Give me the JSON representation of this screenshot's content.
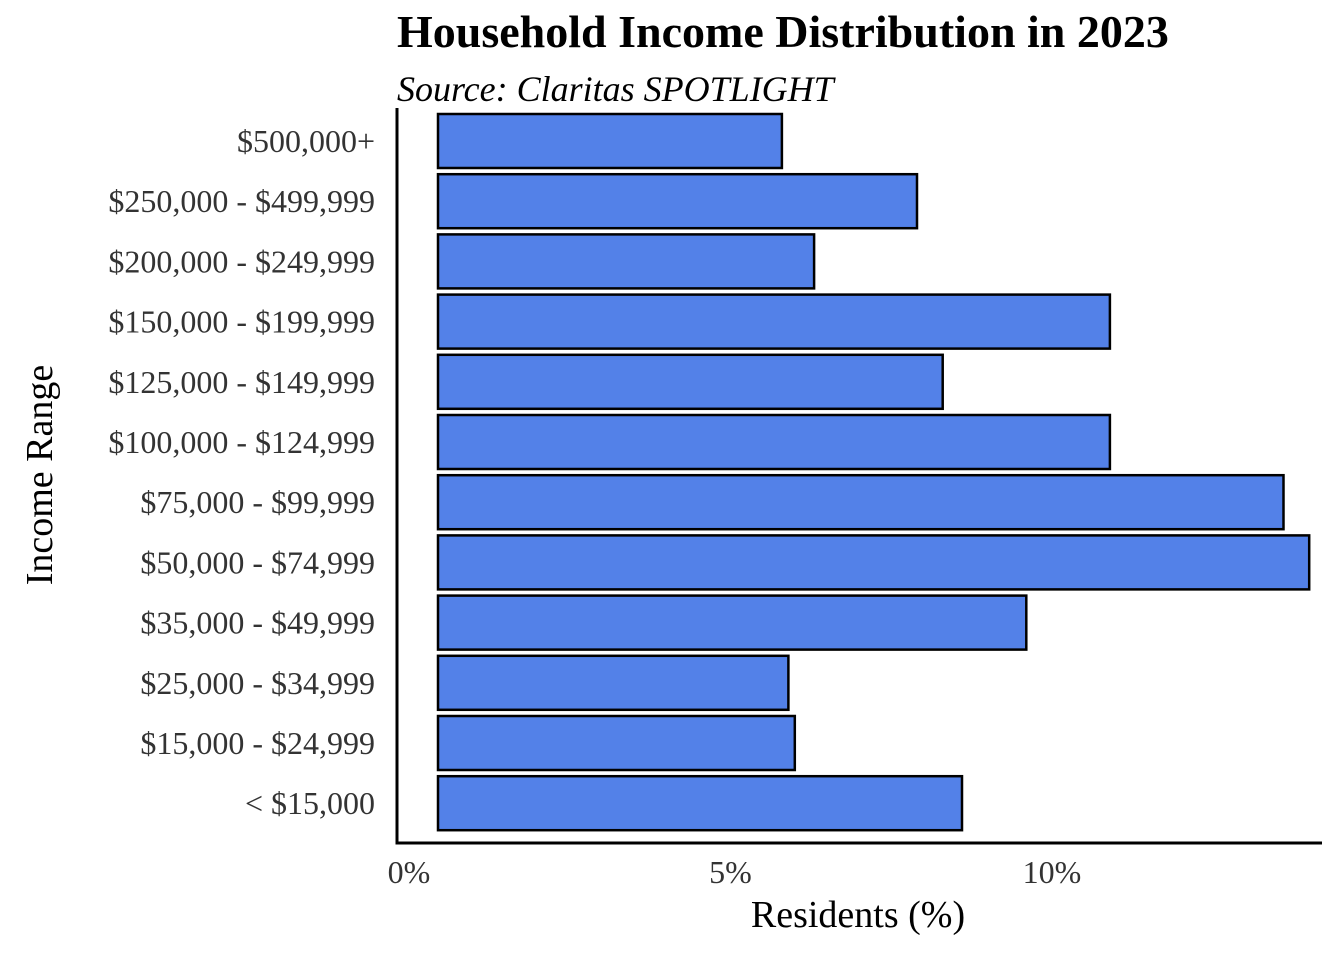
{
  "chart_data": {
    "type": "bar",
    "orientation": "horizontal",
    "title": "Household Income Distribution in 2023",
    "subtitle": "Source: Claritas SPOTLIGHT",
    "xlabel": "Residents (%)",
    "ylabel": "Income Range",
    "xlim": [
      0,
      14.8
    ],
    "xticks": [
      0,
      5,
      10
    ],
    "xtick_labels": [
      "0%",
      "5%",
      "10%"
    ],
    "grid": false,
    "legend": "none",
    "bar_color": "#5381E8",
    "bar_outline": "#000000",
    "categories": [
      "< $15,000",
      "$15,000 - $24,999",
      "$25,000 - $34,999",
      "$35,000 - $49,999",
      "$50,000 - $74,999",
      "$75,000 - $99,999",
      "$100,000 - $124,999",
      "$125,000 - $149,999",
      "$150,000 - $199,999",
      "$200,000 - $249,999",
      "$250,000 - $499,999",
      "$500,000+"
    ],
    "values": [
      8.6,
      6.0,
      5.9,
      9.6,
      14.0,
      13.6,
      10.9,
      8.3,
      10.9,
      6.3,
      7.9,
      5.8
    ]
  }
}
